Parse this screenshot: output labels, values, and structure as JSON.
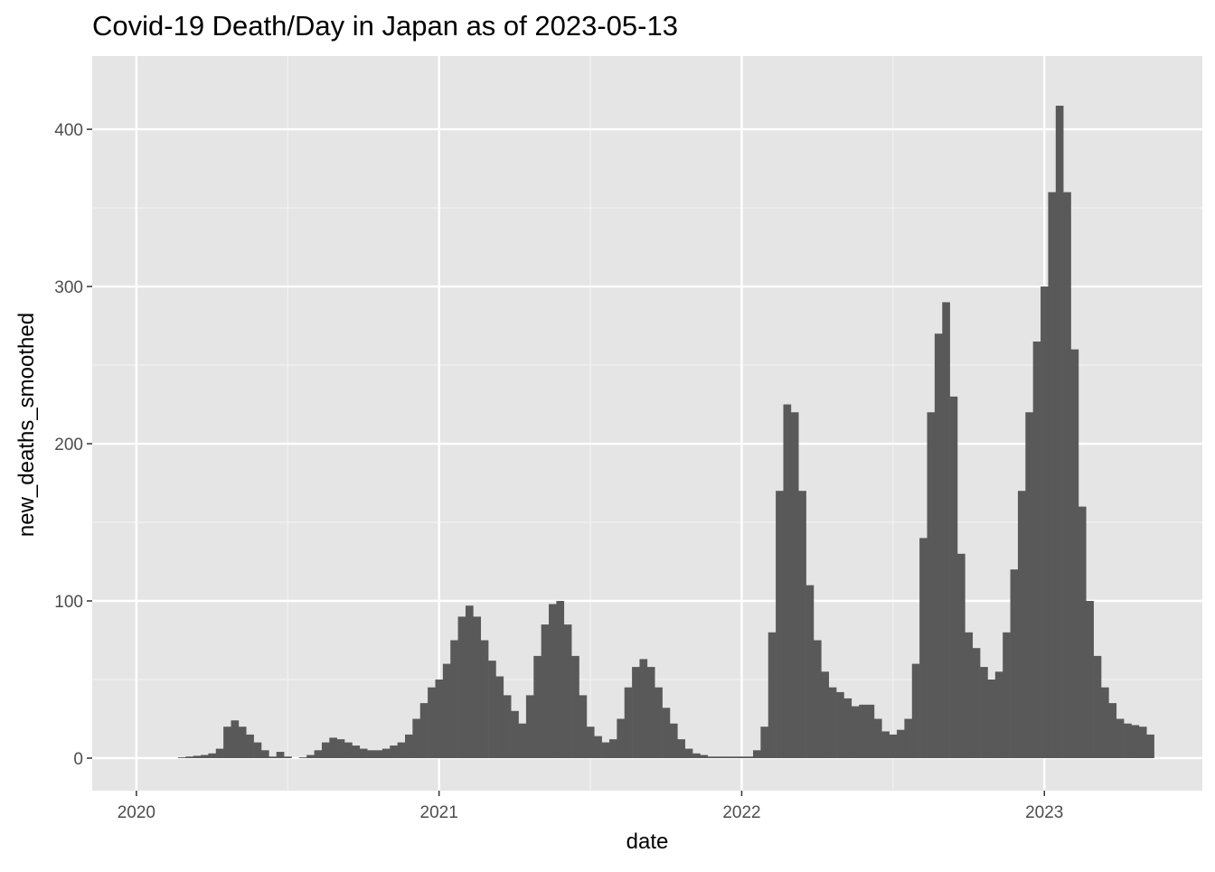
{
  "chart_data": {
    "type": "bar",
    "title": "Covid-19 Death/Day in Japan as of  2023-05-13",
    "x_label": "date",
    "y_label": "new_deaths_smoothed",
    "color": "#595959",
    "xlim": [
      2019.854,
      2023.522
    ],
    "ylim": [
      -20.7,
      446.6
    ],
    "xticks": [
      2020,
      2021,
      2022,
      2023
    ],
    "yticks": [
      0,
      100,
      200,
      300,
      400
    ],
    "x_minor_ticks": [
      2020.5,
      2021.5,
      2022.5
    ],
    "y_minor_ticks": [
      50,
      150,
      250,
      350
    ],
    "grid": true,
    "x": [
      2020.125,
      2020.15,
      2020.175,
      2020.2,
      2020.225,
      2020.25,
      2020.275,
      2020.3,
      2020.325,
      2020.35,
      2020.375,
      2020.4,
      2020.425,
      2020.45,
      2020.475,
      2020.5,
      2020.525,
      2020.55,
      2020.575,
      2020.6,
      2020.625,
      2020.65,
      2020.675,
      2020.7,
      2020.725,
      2020.75,
      2020.775,
      2020.8,
      2020.825,
      2020.85,
      2020.875,
      2020.9,
      2020.925,
      2020.95,
      2020.975,
      2021,
      2021.025,
      2021.05,
      2021.075,
      2021.1,
      2021.125,
      2021.15,
      2021.175,
      2021.2,
      2021.225,
      2021.25,
      2021.275,
      2021.3,
      2021.325,
      2021.35,
      2021.375,
      2021.4,
      2021.425,
      2021.45,
      2021.475,
      2021.5,
      2021.525,
      2021.55,
      2021.575,
      2021.6,
      2021.625,
      2021.65,
      2021.675,
      2021.7,
      2021.725,
      2021.75,
      2021.775,
      2021.8,
      2021.825,
      2021.85,
      2021.875,
      2021.9,
      2021.925,
      2021.95,
      2021.975,
      2022,
      2022.025,
      2022.05,
      2022.075,
      2022.1,
      2022.125,
      2022.15,
      2022.175,
      2022.2,
      2022.225,
      2022.25,
      2022.275,
      2022.3,
      2022.325,
      2022.35,
      2022.375,
      2022.4,
      2022.425,
      2022.45,
      2022.475,
      2022.5,
      2022.525,
      2022.55,
      2022.575,
      2022.6,
      2022.625,
      2022.65,
      2022.675,
      2022.7,
      2022.725,
      2022.75,
      2022.775,
      2022.8,
      2022.825,
      2022.85,
      2022.875,
      2022.9,
      2022.925,
      2022.95,
      2022.975,
      2023,
      2023.025,
      2023.05,
      2023.075,
      2023.1,
      2023.125,
      2023.15,
      2023.175,
      2023.2,
      2023.225,
      2023.25,
      2023.275,
      2023.3,
      2023.325,
      2023.35
    ],
    "values": [
      0,
      0.5,
      1,
      1.5,
      2,
      3,
      6,
      20,
      24,
      20,
      15,
      10,
      5,
      1,
      4,
      1,
      0,
      0.5,
      2,
      5,
      10,
      13,
      12,
      10,
      8,
      6,
      5,
      5,
      6,
      8,
      10,
      15,
      25,
      35,
      45,
      50,
      60,
      75,
      90,
      97,
      90,
      75,
      62,
      52,
      40,
      30,
      22,
      40,
      65,
      85,
      98,
      100,
      85,
      65,
      40,
      20,
      14,
      10,
      12,
      25,
      45,
      58,
      63,
      58,
      45,
      32,
      22,
      12,
      6,
      3,
      2,
      1,
      1,
      1,
      1,
      1,
      1,
      5,
      20,
      80,
      170,
      225,
      220,
      170,
      110,
      75,
      55,
      45,
      42,
      38,
      33,
      34,
      34,
      25,
      17,
      15,
      18,
      25,
      60,
      140,
      220,
      270,
      290,
      230,
      130,
      80,
      70,
      58,
      50,
      55,
      80,
      120,
      170,
      220,
      265,
      300,
      360,
      415,
      360,
      260,
      160,
      100,
      65,
      45,
      35,
      25,
      22,
      21,
      20,
      15
    ]
  }
}
